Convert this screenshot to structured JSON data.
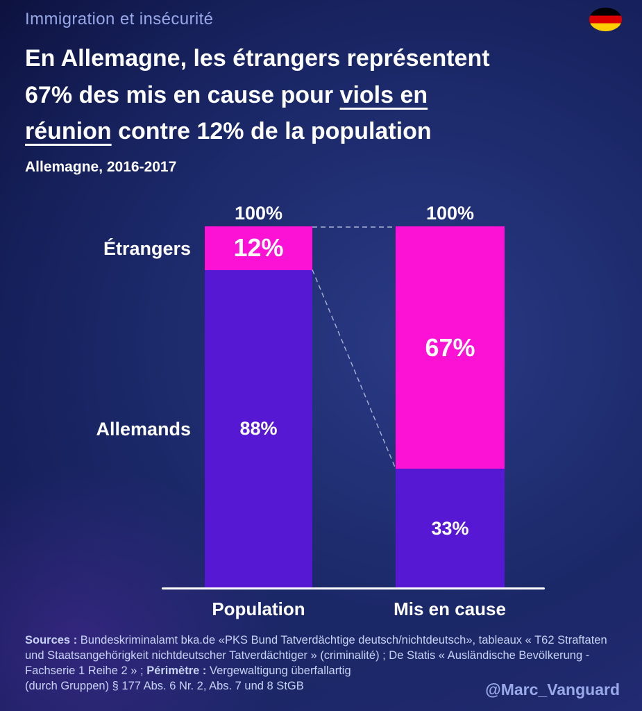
{
  "header": {
    "kicker": "Immigration et insécurité",
    "title": {
      "line1": "En Allemagne, les étrangers représentent",
      "line2_pre": "67% des mis en cause pour ",
      "line2_underlined": "viols en",
      "line3_underlined": "réunion",
      "line3_post": " contre 12% de la population"
    },
    "subtitle": "Allemagne, 2016-2017",
    "flag_colors": [
      "#000000",
      "#dd0000",
      "#ffce00"
    ]
  },
  "chart_data": {
    "type": "bar",
    "stacked": true,
    "title": "En Allemagne, les étrangers représentent 67% des mis en cause pour viols en réunion contre 12% de la population",
    "subtitle": "Allemagne, 2016-2017",
    "categories": [
      "Population",
      "Mis en cause"
    ],
    "series": [
      {
        "name": "Étrangers",
        "color": "#fb12d4",
        "values": [
          12,
          67
        ],
        "labels": [
          "12%",
          "67%"
        ]
      },
      {
        "name": "Allemands",
        "color": "#5618d2",
        "values": [
          88,
          33
        ],
        "labels": [
          "88%",
          "33%"
        ]
      }
    ],
    "total_labels": [
      "100%",
      "100%"
    ],
    "ylim": [
      0,
      100
    ],
    "unit": "%",
    "grid": false,
    "legend_position": "row-labels-left"
  },
  "footer": {
    "sources_label": "Sources :",
    "sources_text": " Bundeskriminalamt bka.de «PKS Bund Tatverdächtige deutsch/nichtdeutsch», tableaux « T62 Straftaten und Staatsangehörigkeit nichtdeutscher Tatverdächtiger » (criminalité) ; De Statis « Ausländische Bevölkerung - Fachserie 1 Reihe 2 » ; ",
    "perimetre_label": "Périmètre :",
    "perimetre_text_line1": " Vergewaltigung überfallartig",
    "perimetre_text_line2": "(durch Gruppen) § 177 Abs. 6 Nr. 2, Abs. 7 und 8 StGB",
    "handle": "@Marc_Vanguard"
  }
}
